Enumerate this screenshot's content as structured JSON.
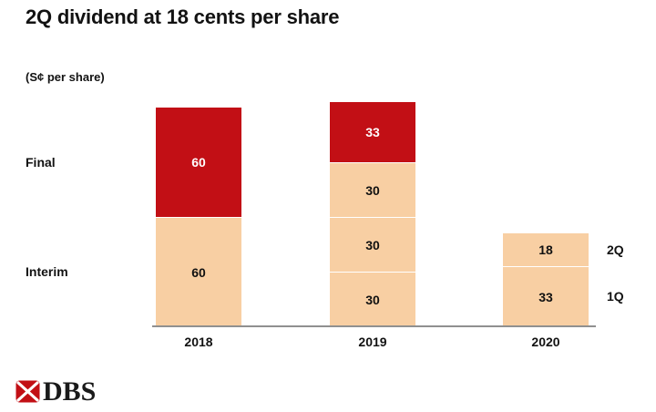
{
  "title": "2Q dividend at 18 cents per share",
  "unit_label": "(S¢ per share)",
  "row_labels": [
    "Final",
    "Interim"
  ],
  "logo": {
    "text": "DBS"
  },
  "colors": {
    "red": "#C20F15",
    "peach": "#F8CFA3",
    "axis": "#909090",
    "text": "#111111",
    "white": "#FFFFFF"
  },
  "chart_data": {
    "type": "bar",
    "stacked": true,
    "title": "2Q dividend at 18 cents per share",
    "ylabel": "S¢ per share",
    "grid": false,
    "categories": [
      "2018",
      "2019",
      "2020"
    ],
    "segment_order": "bottom-to-top",
    "bars": [
      {
        "category": "2018",
        "segments": [
          {
            "value": 60,
            "label": "60",
            "series": "Interim",
            "color_key": "peach",
            "text_color_key": "text"
          },
          {
            "value": 60,
            "label": "60",
            "series": "Final",
            "color_key": "red",
            "text_color_key": "white"
          }
        ]
      },
      {
        "category": "2019",
        "segments": [
          {
            "value": 30,
            "label": "30",
            "series": "Interim",
            "color_key": "peach",
            "text_color_key": "text"
          },
          {
            "value": 30,
            "label": "30",
            "series": "Interim",
            "color_key": "peach",
            "text_color_key": "text"
          },
          {
            "value": 30,
            "label": "30",
            "series": "Interim",
            "color_key": "peach",
            "text_color_key": "text"
          },
          {
            "value": 33,
            "label": "33",
            "series": "Final",
            "color_key": "red",
            "text_color_key": "white"
          }
        ]
      },
      {
        "category": "2020",
        "segments": [
          {
            "value": 33,
            "label": "33",
            "series": "Interim",
            "color_key": "peach",
            "text_color_key": "text",
            "side_label": "1Q"
          },
          {
            "value": 18,
            "label": "18",
            "series": "Interim",
            "color_key": "peach",
            "text_color_key": "text",
            "side_label": "2Q"
          }
        ]
      }
    ],
    "row_annotations": [
      "Final",
      "Interim"
    ],
    "side_annotations": [
      "2Q",
      "1Q"
    ]
  }
}
